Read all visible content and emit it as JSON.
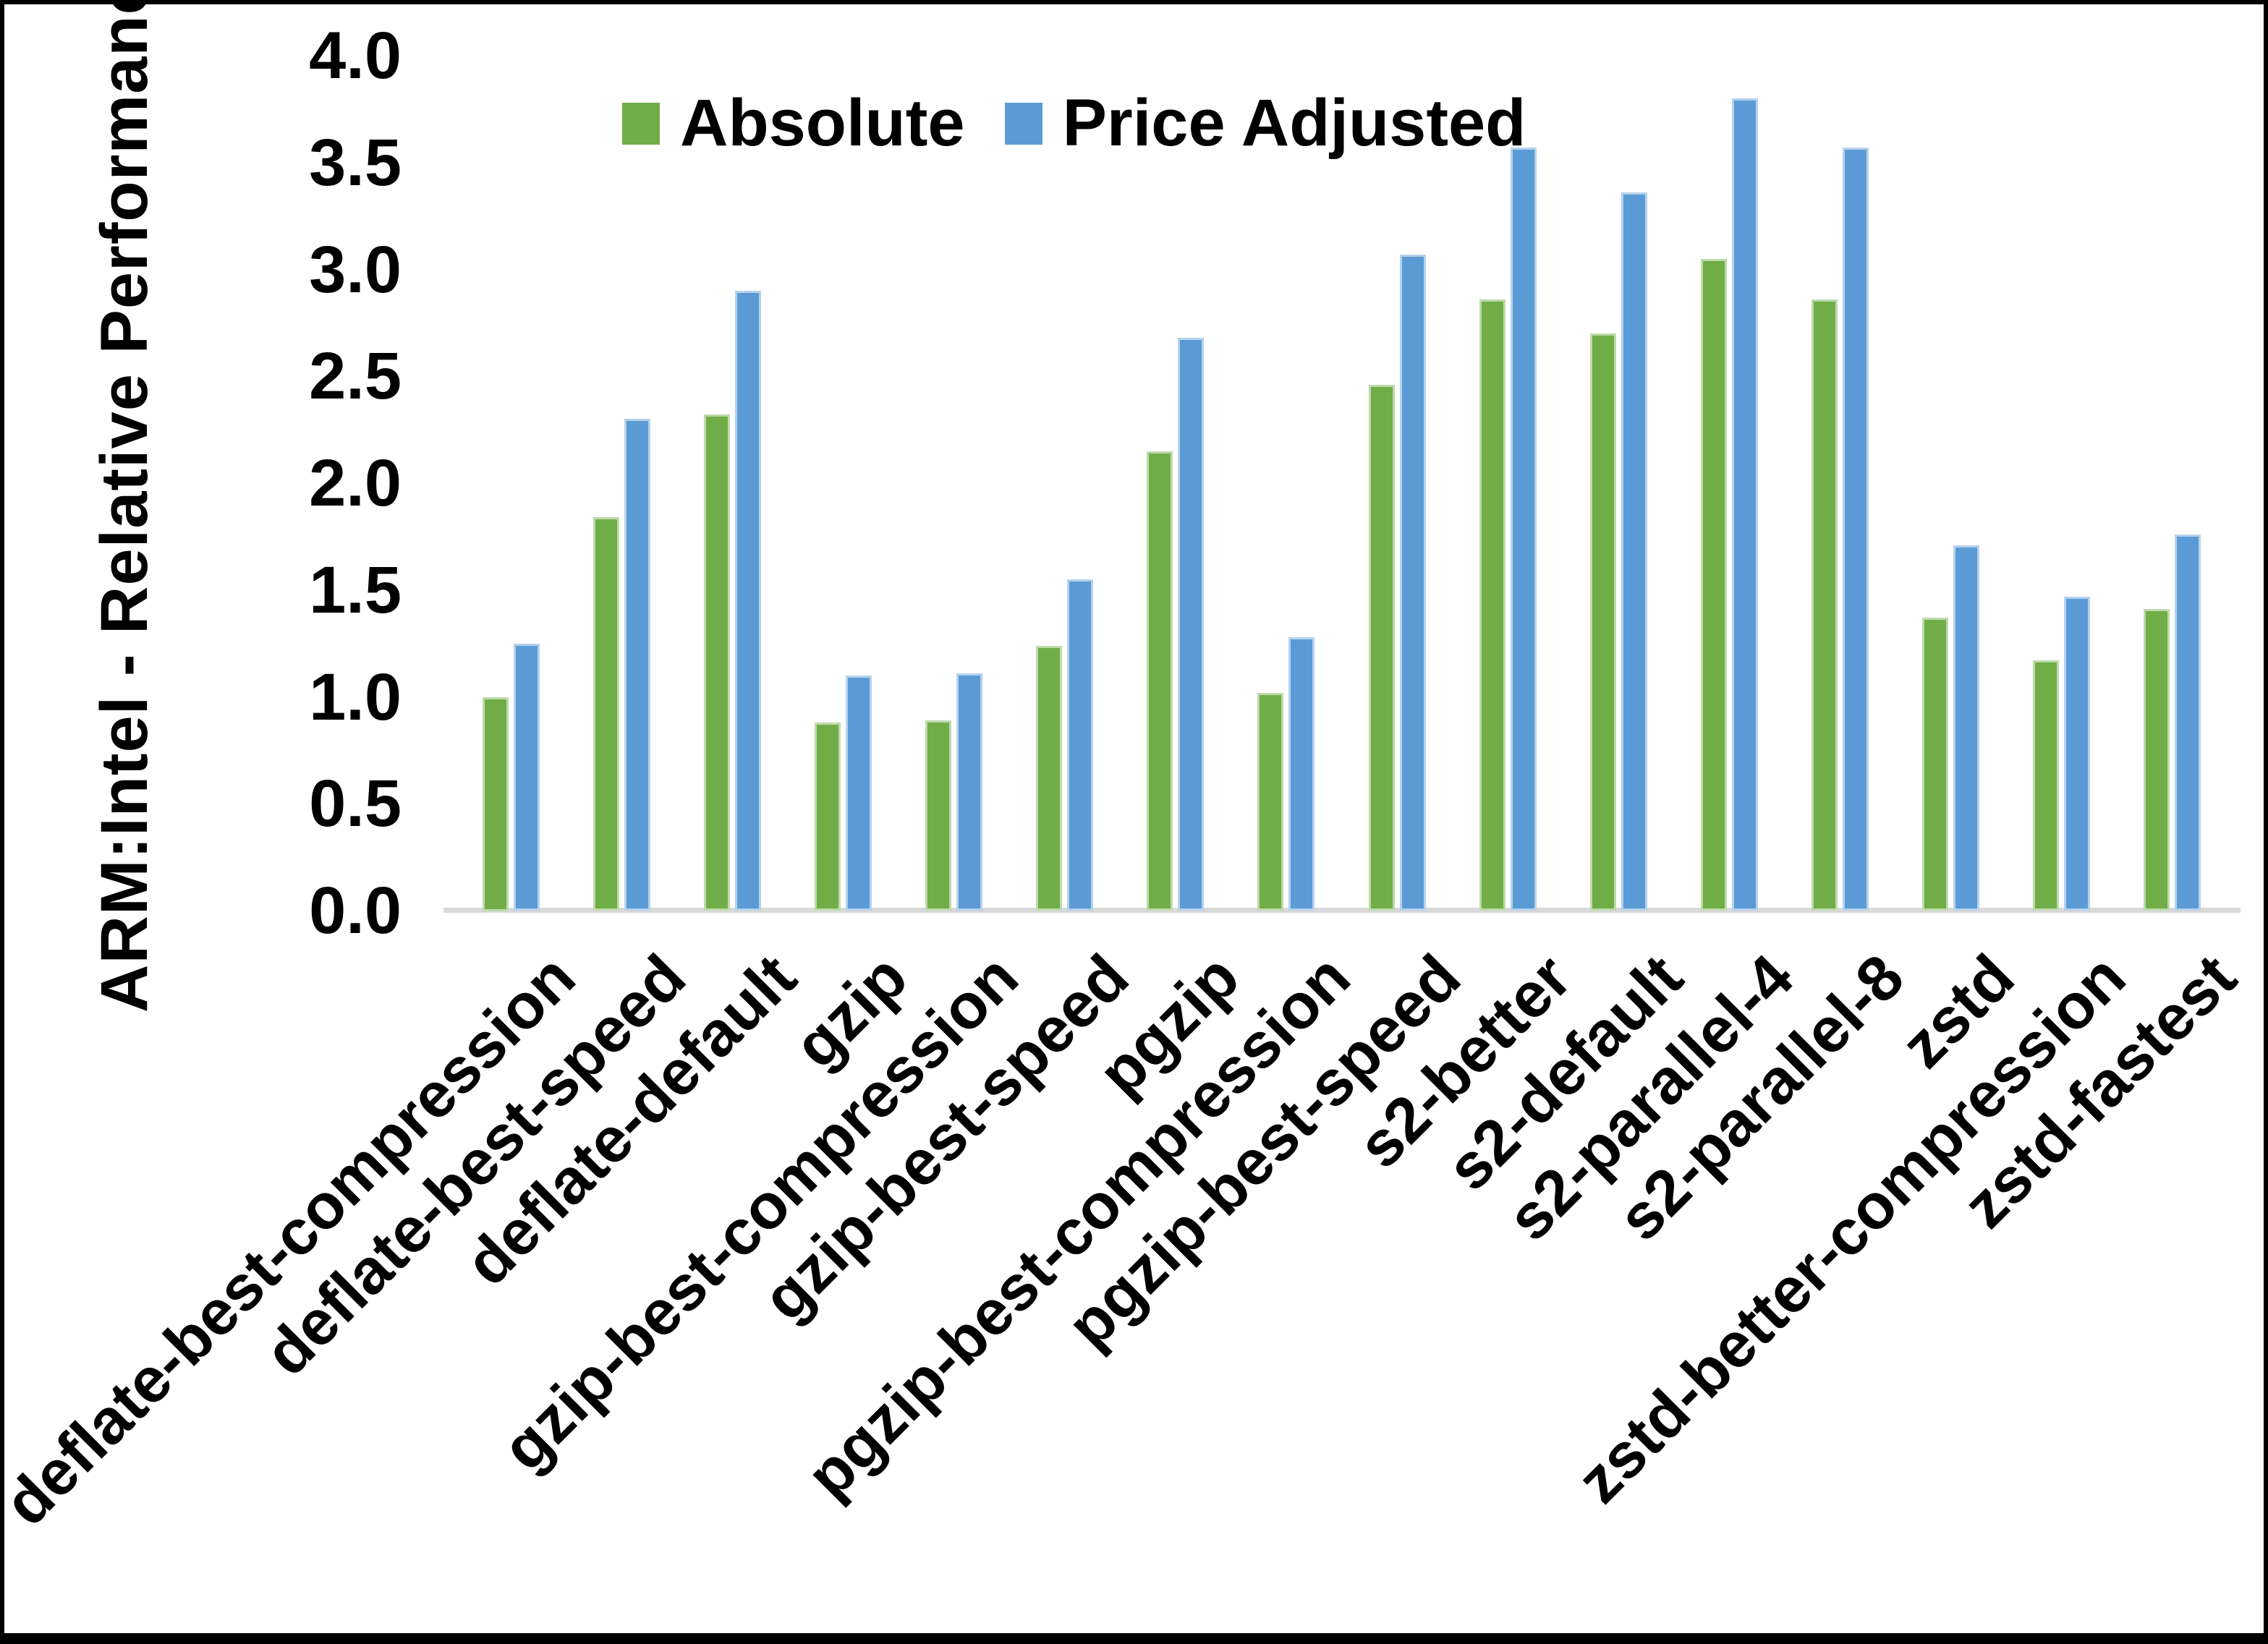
{
  "chart_data": {
    "type": "bar",
    "title": "",
    "ylabel": "ARM:Intel - Relative Performance",
    "xlabel": "",
    "ylim": [
      0.0,
      4.0
    ],
    "ytick_step": 0.5,
    "yticks": [
      "0.0",
      "0.5",
      "1.0",
      "1.5",
      "2.0",
      "2.5",
      "3.0",
      "3.5",
      "4.0"
    ],
    "grid": false,
    "legend_position": "top-center",
    "background_color": "#ffffff",
    "axis_line_color": "#D9D9D9",
    "text_color": "#000000",
    "categories": [
      "deflate-best-compression",
      "deflate-best-speed",
      "deflate-default",
      "gzip",
      "gzip-best-compression",
      "gzip-best-speed",
      "pgzip",
      "pgzip-best-compression",
      "pgzip-best-speed",
      "s2-better",
      "s2-default",
      "s2-parallel-4",
      "s2-parallel-8",
      "zstd",
      "zstd-better-compression",
      "zstd-fastest"
    ],
    "series": [
      {
        "name": "Absolute",
        "color": "#70AD47",
        "values": [
          1.0,
          1.84,
          2.32,
          0.88,
          0.89,
          1.24,
          2.15,
          1.02,
          2.46,
          2.86,
          2.7,
          3.05,
          2.86,
          1.37,
          1.17,
          1.41
        ]
      },
      {
        "name": "Price Adjusted",
        "color": "#5B9BD5",
        "values": [
          1.25,
          2.3,
          2.9,
          1.1,
          1.11,
          1.55,
          2.68,
          1.28,
          3.07,
          3.57,
          3.36,
          3.8,
          3.57,
          1.71,
          1.47,
          1.76
        ]
      }
    ]
  }
}
